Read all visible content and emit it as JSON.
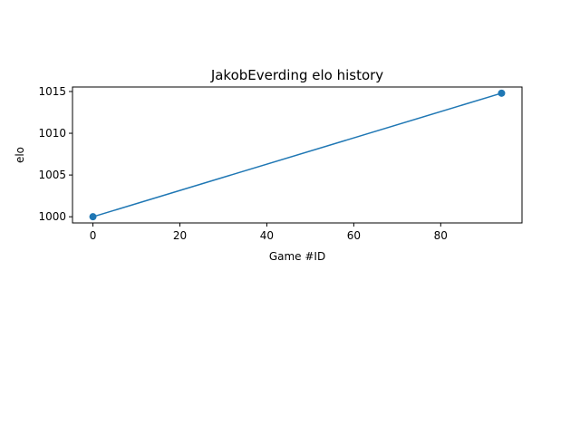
{
  "chart_data": {
    "type": "line",
    "title": "JakobEverding elo history",
    "xlabel": "Game #ID",
    "ylabel": "elo",
    "xlim": [
      -4.7,
      98.7
    ],
    "ylim": [
      999.26,
      1015.54
    ],
    "xticks": [
      0,
      20,
      40,
      60,
      80
    ],
    "yticks": [
      1000,
      1005,
      1010,
      1015
    ],
    "grid": false,
    "series": [
      {
        "color": "#1f77b4",
        "marker": "circle",
        "points": [
          {
            "x": 0,
            "y": 1000
          },
          {
            "x": 94,
            "y": 1014.8
          }
        ]
      }
    ]
  }
}
